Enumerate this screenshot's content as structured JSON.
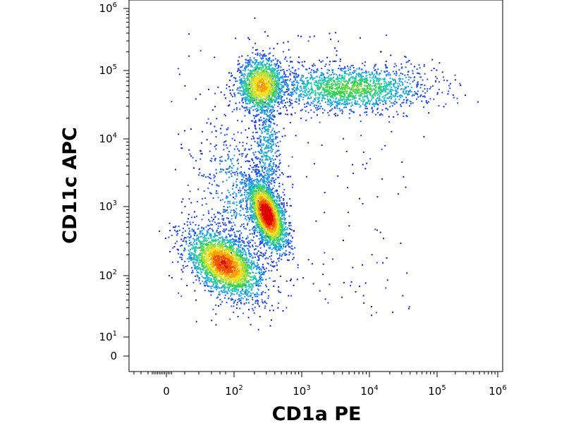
{
  "chart_data": {
    "type": "scatter",
    "title": "",
    "xlabel": "CD1a PE",
    "ylabel": "CD11c APC",
    "x_scale": "biexponential",
    "y_scale": "biexponential",
    "xlim": [
      -50,
      1000000
    ],
    "ylim": [
      -10,
      1000000
    ],
    "x_ticks": [
      {
        "base": "0",
        "exp": ""
      },
      {
        "base": "10",
        "exp": "2"
      },
      {
        "base": "10",
        "exp": "3"
      },
      {
        "base": "10",
        "exp": "4"
      },
      {
        "base": "10",
        "exp": "5"
      },
      {
        "base": "10",
        "exp": "6"
      }
    ],
    "y_ticks": [
      {
        "base": "0",
        "exp": ""
      },
      {
        "base": "10",
        "exp": "1"
      },
      {
        "base": "10",
        "exp": "2"
      },
      {
        "base": "10",
        "exp": "3"
      },
      {
        "base": "10",
        "exp": "4"
      },
      {
        "base": "10",
        "exp": "5"
      },
      {
        "base": "10",
        "exp": "6"
      }
    ],
    "grid": false,
    "coloring": "density (blue low → green → yellow → red high)",
    "clusters": [
      {
        "name": "low",
        "x_center": 70,
        "y_center": 150,
        "density": "high"
      },
      {
        "name": "mid",
        "x_center": 300,
        "y_center": 800,
        "density": "highest"
      },
      {
        "name": "upper-left",
        "x_center": 250,
        "y_center": 60000,
        "density": "medium"
      },
      {
        "name": "upper-right band",
        "x_range": [
          1000,
          30000
        ],
        "y_center": 55000,
        "density": "medium-low"
      },
      {
        "name": "bridge",
        "x_center": 300,
        "y_range": [
          2000,
          20000
        ],
        "density": "low"
      }
    ]
  }
}
